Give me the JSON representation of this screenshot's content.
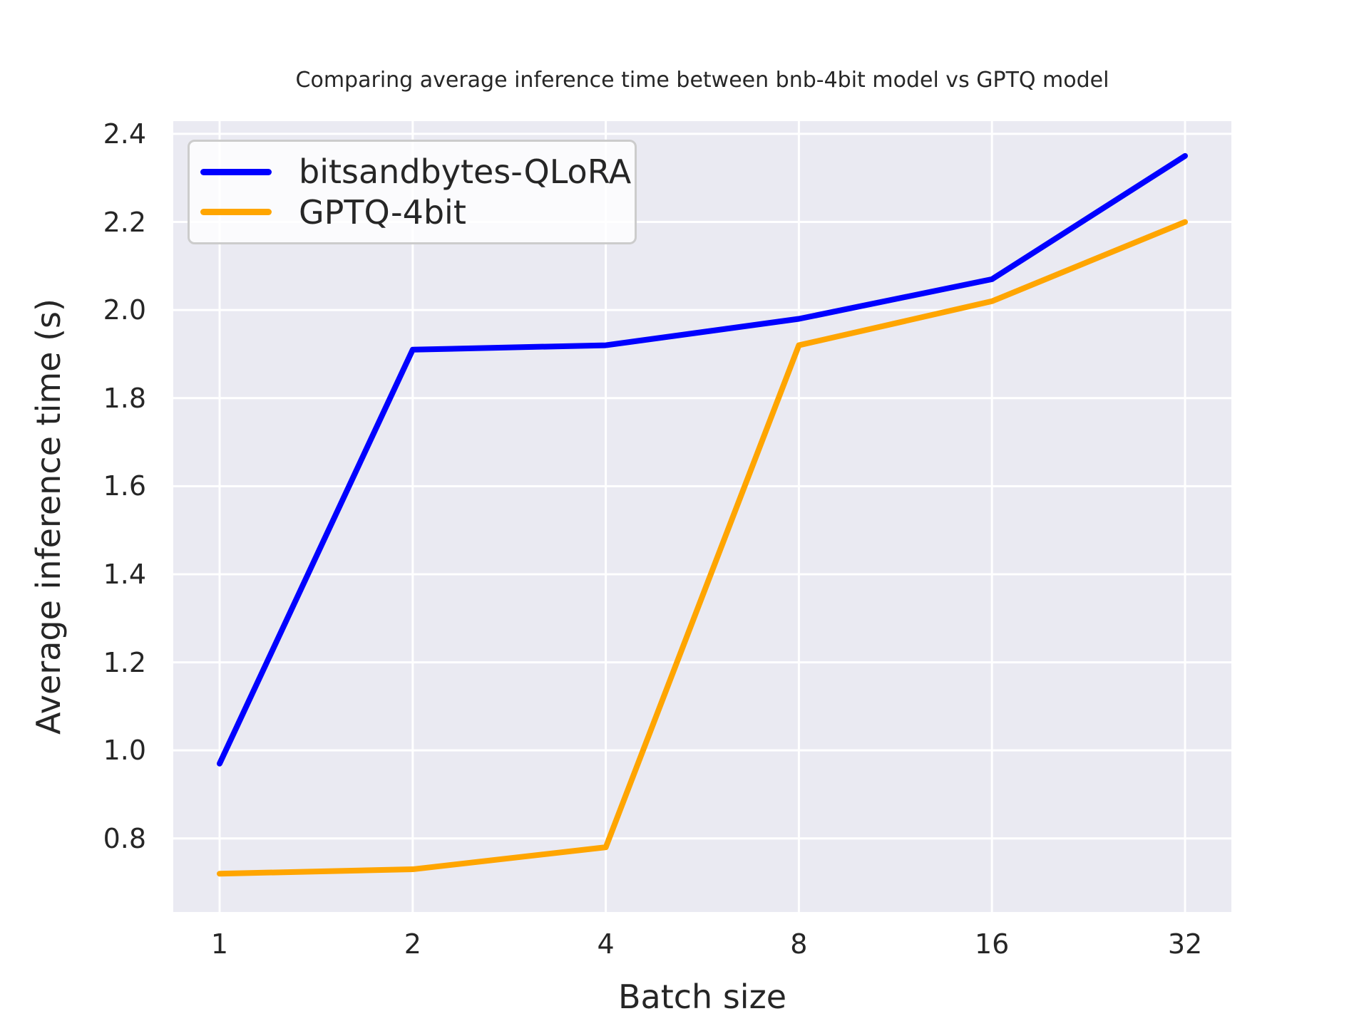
{
  "chart_data": {
    "type": "line",
    "title": "Comparing average inference time between bnb-4bit model vs GPTQ model",
    "xlabel": "Batch size",
    "ylabel": "Average inference time (s)",
    "categories": [
      "1",
      "2",
      "4",
      "8",
      "16",
      "32"
    ],
    "series": [
      {
        "name": "bitsandbytes-QLoRA",
        "color": "#0000ff",
        "values": [
          0.97,
          1.91,
          1.92,
          1.98,
          2.07,
          2.35
        ]
      },
      {
        "name": "GPTQ-4bit",
        "color": "#ffa500",
        "values": [
          0.72,
          0.73,
          0.78,
          1.92,
          2.02,
          2.2
        ]
      }
    ],
    "yticks": [
      0.8,
      1.0,
      1.2,
      1.4,
      1.6,
      1.8,
      2.0,
      2.2,
      2.4
    ],
    "ylim": [
      0.633,
      2.429
    ],
    "grid": true,
    "grid_color": "#ffffff",
    "plot_background": "#eaeaf2",
    "text_color": "#262626",
    "legend_position": "upper left",
    "line_width": 8
  }
}
